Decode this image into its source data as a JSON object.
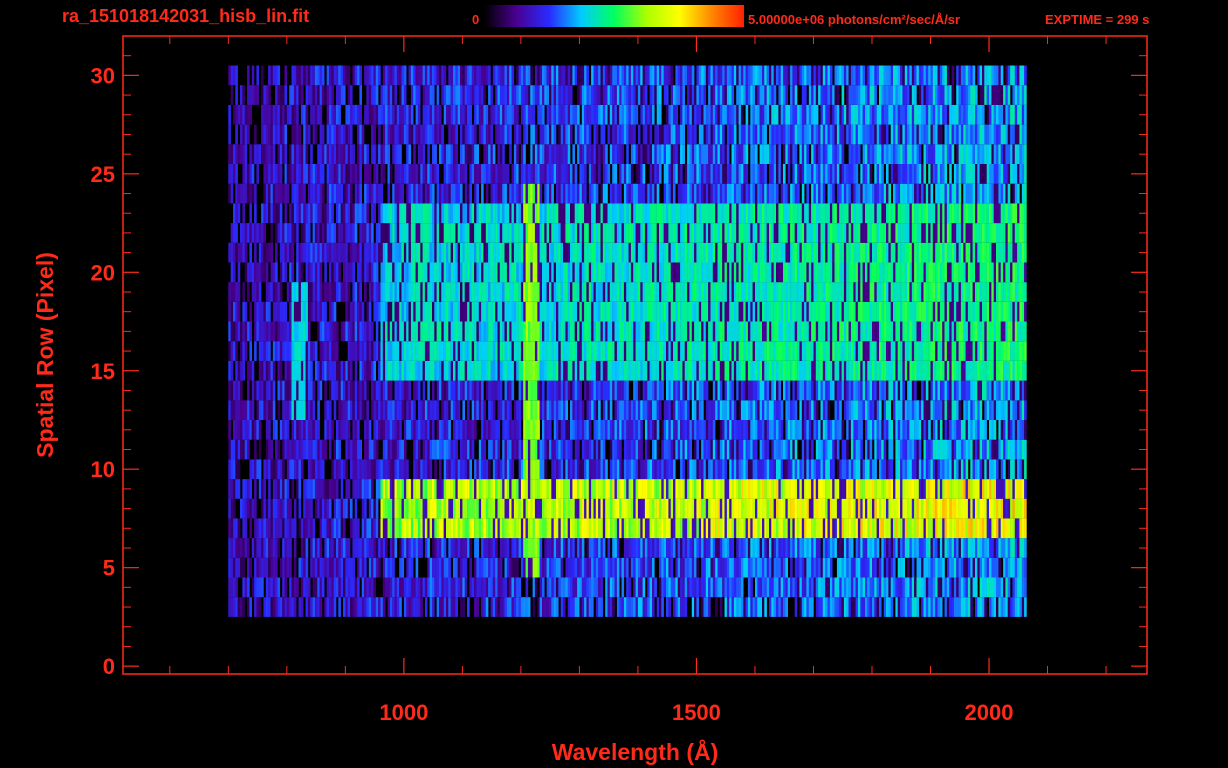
{
  "header": {
    "filename": "ra_151018142031_hisb_lin.fit",
    "colorbar_min_label": "0",
    "colorbar_max_label": "5.00000e+06 photons/cm²/sec/Å/sr",
    "exptime_label": "EXPTIME = 299 s"
  },
  "colors": {
    "axis": "#ff2a1a",
    "background": "#000000",
    "colormap": [
      "#000000",
      "#4a0090",
      "#2a2aff",
      "#00ccff",
      "#00ff60",
      "#aaff00",
      "#ffff00",
      "#ff8800",
      "#ff2000"
    ]
  },
  "chart_data": {
    "type": "heatmap",
    "title": "",
    "xlabel": "Wavelength (Å)",
    "ylabel": "Spatial Row (Pixel)",
    "xlim": [
      520,
      2270
    ],
    "ylim": [
      -0.4,
      32
    ],
    "x_ticks": [
      1000,
      1500,
      2000
    ],
    "x_tick_labels": [
      "1000",
      "1500",
      "2000"
    ],
    "y_ticks": [
      0,
      5,
      10,
      15,
      20,
      25,
      30
    ],
    "y_tick_labels": [
      "0",
      "5",
      "10",
      "15",
      "20",
      "25",
      "30"
    ],
    "colorbar_range": [
      0,
      5000000
    ],
    "data_extent": {
      "x": [
        700,
        2060
      ],
      "rows": [
        3,
        30
      ]
    },
    "features": [
      {
        "label": "bright continuum band",
        "x_range": [
          960,
          2060
        ],
        "rows": [
          7,
          9
        ],
        "level": 0.68
      },
      {
        "label": "bright emission line",
        "x": 1216,
        "rows": [
          5,
          24
        ],
        "level": 0.62
      },
      {
        "label": "diffuse emission",
        "x_range": [
          960,
          2060
        ],
        "rows": [
          15,
          23
        ],
        "level": 0.42
      },
      {
        "label": "faint arc",
        "x": 820,
        "rows": [
          13,
          19
        ],
        "level": 0.42
      },
      {
        "label": "emission line",
        "x": 1025,
        "rows": [
          16,
          23
        ],
        "level": 0.45
      }
    ]
  }
}
